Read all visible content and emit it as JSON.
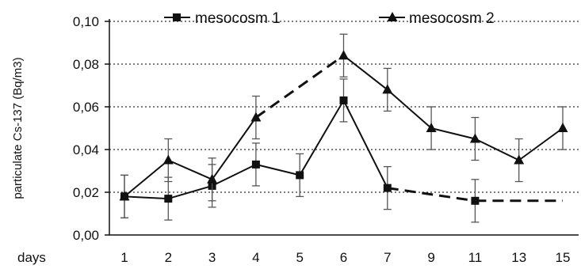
{
  "chart_data": {
    "type": "line",
    "categories": [
      "1",
      "2",
      "3",
      "4",
      "5",
      "6",
      "7",
      "9",
      "11",
      "13",
      "15"
    ],
    "x_axis_prefix": "days",
    "ylabel": "particulate Cs-137 (Bq/m3)",
    "ylim": [
      0,
      0.1
    ],
    "y_ticks": [
      "0,00",
      "0,02",
      "0,04",
      "0,06",
      "0,08",
      "0,10"
    ],
    "grid": "horizontal dotted",
    "legend_position": "top",
    "series": [
      {
        "name": "mesocosm 1",
        "marker": "square",
        "values": [
          0.018,
          0.017,
          0.023,
          0.033,
          0.028,
          0.063,
          0.022,
          null,
          0.016,
          null,
          null
        ],
        "errors": [
          0.01,
          0.01,
          0.01,
          0.01,
          0.01,
          0.01,
          0.01,
          null,
          0.01,
          null,
          null
        ],
        "dashed_segments": [
          [
            6,
            8
          ],
          [
            8,
            10
          ]
        ],
        "projected_end_value": 0.016
      },
      {
        "name": "mesocosm 2",
        "marker": "triangle",
        "values": [
          0.018,
          0.035,
          0.026,
          0.055,
          null,
          0.084,
          0.068,
          0.05,
          0.045,
          0.035,
          0.05
        ],
        "errors": [
          0.01,
          0.01,
          0.01,
          0.01,
          null,
          0.01,
          0.01,
          0.01,
          0.01,
          0.01,
          0.01
        ],
        "dashed_segments": [
          [
            3,
            5
          ]
        ]
      }
    ]
  }
}
